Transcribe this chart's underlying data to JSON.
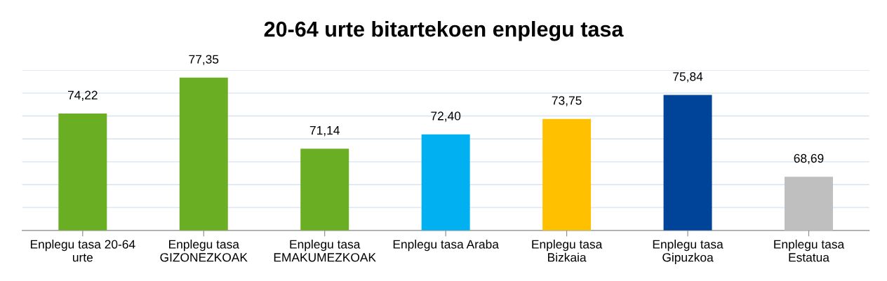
{
  "chart_data": {
    "type": "bar",
    "title": "20-64 urte bitartekoen enplegu tasa",
    "categories": [
      "Enplegu tasa 20-64\nurte",
      "Enplegu tasa\nGIZONEZKOAK",
      "Enplegu tasa\nEMAKUMEZKOAK",
      "Enplegu tasa Araba",
      "Enplegu tasa\nBizkaia",
      "Enplegu tasa\nGipuzkoa",
      "Enplegu tasa\nEstatua"
    ],
    "values": [
      74.22,
      77.35,
      71.14,
      72.4,
      73.75,
      75.84,
      68.69
    ],
    "value_labels": [
      "74,22",
      "77,35",
      "71,14",
      "72,40",
      "73,75",
      "75,84",
      "68,69"
    ],
    "colors": [
      "#6aaf23",
      "#6aaf23",
      "#6aaf23",
      "#00b0f0",
      "#ffc000",
      "#00449a",
      "#bfbfbf"
    ],
    "ylim": [
      64,
      78
    ],
    "yticks": [
      {
        "value": 64,
        "label": null
      },
      {
        "value": 66,
        "label": null
      },
      {
        "value": 68,
        "label": null
      },
      {
        "value": 70,
        "label": null
      },
      {
        "value": 72,
        "label": null
      },
      {
        "value": 74,
        "label": null
      },
      {
        "value": 76,
        "label": null
      },
      {
        "value": 78,
        "label": null
      }
    ],
    "grid": "y",
    "tick_labels": "x"
  }
}
